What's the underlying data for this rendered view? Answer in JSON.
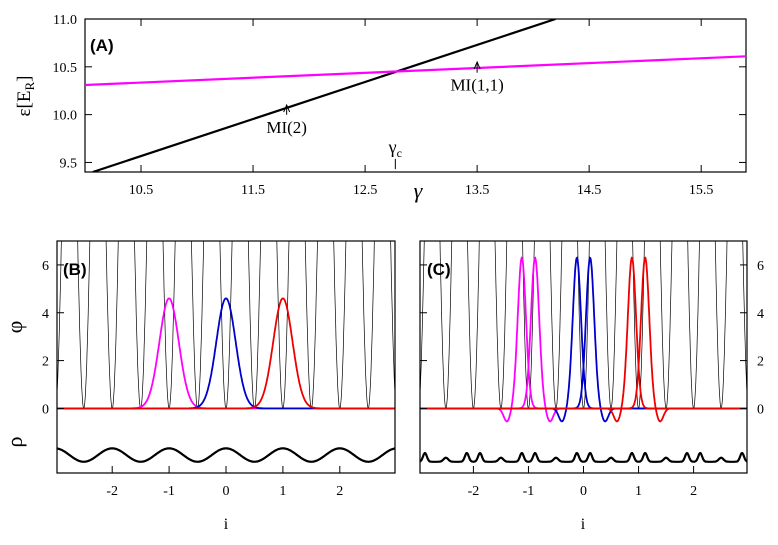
{
  "chart_data": [
    {
      "id": "A",
      "type": "line",
      "panel_label": "(A)",
      "ylabel": "ε[E",
      "ylabel_sub": "R",
      "ylabel_end": "]",
      "xlabel": "γ",
      "xlim": [
        10.0,
        15.9
      ],
      "ylim": [
        9.4,
        11.0
      ],
      "xticks": [
        10.5,
        11.5,
        12.5,
        13.5,
        14.5,
        15.5
      ],
      "xtick_labels": [
        "10.5",
        "11.5",
        "12.5",
        "13.5",
        "14.5",
        "15.5"
      ],
      "yticks": [
        9.5,
        10.0,
        10.5,
        11.0
      ],
      "ytick_labels": [
        "9.5",
        "10.0",
        "10.5",
        "11.0"
      ],
      "series": [
        {
          "color": "#000000",
          "x": [
            10.07,
            14.2
          ],
          "y": [
            9.4,
            11.0
          ]
        },
        {
          "color": "#ff00ff",
          "x": [
            10.0,
            15.9
          ],
          "y": [
            10.31,
            10.61
          ]
        }
      ],
      "annotations": [
        {
          "text": "MI(2)",
          "x": 11.8,
          "y": 9.81,
          "arrow_to_y": 10.1
        },
        {
          "text": "MI(1,1)",
          "x": 13.5,
          "y": 10.25,
          "arrow_to_y": 10.55
        },
        {
          "text": "γ",
          "sub": "c",
          "x": 12.77,
          "y": 9.6,
          "arrow_to_y": 9.43
        }
      ]
    },
    {
      "id": "B",
      "type": "line",
      "panel_label": "(B)",
      "ylabel": "φ",
      "ylabel2": "ρ",
      "xlabel": "i",
      "xlim": [
        -2.97,
        2.97
      ],
      "ylim": [
        -2.7,
        7.0
      ],
      "xticks": [
        -2,
        -1,
        0,
        1,
        2
      ],
      "xtick_labels": [
        "-2",
        "-1",
        "0",
        "1",
        "2"
      ],
      "yticks": [
        0,
        2,
        4,
        6
      ],
      "ytick_labels": [
        "0",
        "2",
        "4",
        "6"
      ],
      "lattice": {
        "color": "#000000",
        "minima": [
          -2.5,
          -2,
          -1.5,
          -1,
          -0.5,
          0,
          0.5,
          1,
          1.5,
          2,
          2.5
        ]
      },
      "wavefunctions": [
        {
          "color": "#ff00ff",
          "center": -1.0,
          "peak": 4.6,
          "width": 0.17
        },
        {
          "color": "#0000cc",
          "center": 0.0,
          "peak": 4.6,
          "width": 0.17
        },
        {
          "color": "#ee0000",
          "center": 1.0,
          "peak": 4.6,
          "width": 0.17
        }
      ],
      "density": {
        "color": "#000000",
        "pattern": "single",
        "baseline": -1.95,
        "amplitude": 0.28
      }
    },
    {
      "id": "C",
      "type": "line",
      "panel_label": "(C)",
      "xlabel": "i",
      "xlim": [
        -2.97,
        2.97
      ],
      "ylim": [
        -2.7,
        7.0
      ],
      "xticks": [
        -2,
        -1,
        0,
        1,
        2
      ],
      "xtick_labels": [
        "-2",
        "-1",
        "0",
        "1",
        "2"
      ],
      "yticks": [
        0,
        2,
        4,
        6
      ],
      "ytick_labels": [
        "0",
        "2",
        "4",
        "6"
      ],
      "lattice": {
        "color": "#000000",
        "minima": [
          -2.5,
          -2,
          -1.5,
          -1,
          -0.5,
          0,
          0.5,
          1,
          1.5,
          2,
          2.5
        ]
      },
      "wavefunctions": [
        {
          "color": "#ff00ff",
          "center": -1.12,
          "peak": 6.3,
          "width": 0.075,
          "dip": -0.55,
          "dip_side": -1
        },
        {
          "color": "#ff00ff",
          "center": -0.88,
          "peak": 6.3,
          "width": 0.075,
          "dip": -0.55,
          "dip_side": 1
        },
        {
          "color": "#0000cc",
          "center": -0.12,
          "peak": 6.3,
          "width": 0.075,
          "dip": -0.55,
          "dip_side": -1
        },
        {
          "color": "#0000cc",
          "center": 0.12,
          "peak": 6.3,
          "width": 0.075,
          "dip": -0.55,
          "dip_side": 1
        },
        {
          "color": "#ee0000",
          "center": 0.88,
          "peak": 6.3,
          "width": 0.075,
          "dip": -0.55,
          "dip_side": -1
        },
        {
          "color": "#ee0000",
          "center": 1.12,
          "peak": 6.3,
          "width": 0.075,
          "dip": -0.55,
          "dip_side": 1
        }
      ],
      "density": {
        "color": "#000000",
        "pattern": "double",
        "baseline": -1.95,
        "amplitude": 0.28
      }
    }
  ]
}
